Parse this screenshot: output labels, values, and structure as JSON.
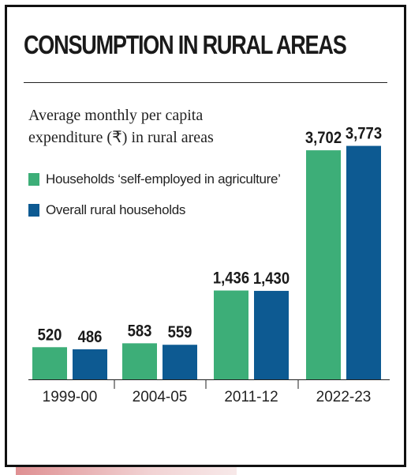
{
  "title": "CONSUMPTION IN RURAL AREAS",
  "subtitle": "Average monthly per capita expenditure (₹) in rural areas",
  "legend": [
    {
      "label": "Households ‘self-employed in agriculture’",
      "color": "#3dae78"
    },
    {
      "label": "Overall rural households",
      "color": "#0d5a92"
    }
  ],
  "chart_data": {
    "type": "bar",
    "title": "CONSUMPTION IN RURAL AREAS",
    "subtitle": "Average monthly per capita expenditure (₹) in rural areas",
    "categories": [
      "1999-00",
      "2004-05",
      "2011-12",
      "2022-23"
    ],
    "series": [
      {
        "name": "Households ‘self-employed in agriculture’",
        "color": "#3dae78",
        "values": [
          520,
          583,
          1436,
          3702
        ],
        "labels": [
          "520",
          "583",
          "1,436",
          "3,702"
        ]
      },
      {
        "name": "Overall rural households",
        "color": "#0d5a92",
        "values": [
          486,
          559,
          1430,
          3773
        ],
        "labels": [
          "486",
          "559",
          "1,430",
          "3,773"
        ]
      }
    ],
    "ylim": [
      0,
      4000
    ],
    "grid": false,
    "legend_position": "top-left"
  }
}
